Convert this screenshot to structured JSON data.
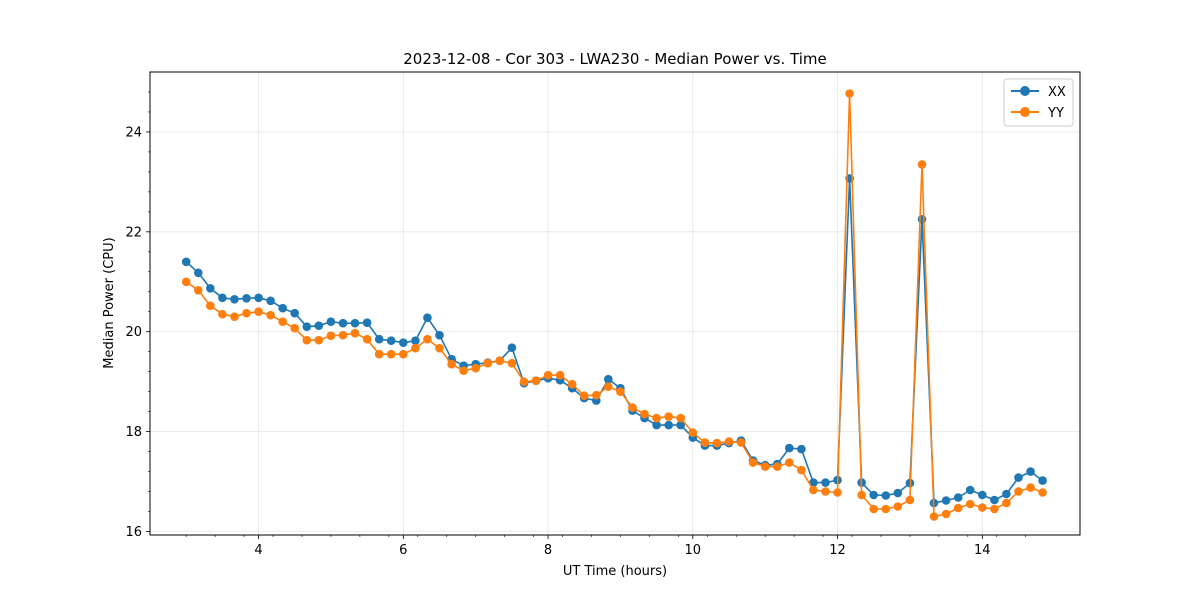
{
  "chart_data": {
    "type": "line",
    "title": "2023-12-08 - Cor 303 - LWA230 - Median Power vs. Time",
    "xlabel": "UT Time (hours)",
    "ylabel": "Median Power (CPU)",
    "xlim": [
      2.5,
      15.35
    ],
    "ylim": [
      15.93,
      25.2
    ],
    "xticks": [
      4,
      6,
      8,
      10,
      12,
      14
    ],
    "xtick_labels": [
      "4",
      "6",
      "8",
      "10",
      "12",
      "14"
    ],
    "yticks": [
      16,
      18,
      20,
      22,
      24
    ],
    "ytick_labels": [
      "16",
      "18",
      "20",
      "22",
      "24"
    ],
    "grid": true,
    "legend_position": "top-right",
    "x": [
      3.0,
      3.167,
      3.333,
      3.5,
      3.667,
      3.833,
      4.0,
      4.167,
      4.333,
      4.5,
      4.667,
      4.833,
      5.0,
      5.167,
      5.333,
      5.5,
      5.667,
      5.833,
      6.0,
      6.167,
      6.333,
      6.5,
      6.667,
      6.833,
      7.0,
      7.167,
      7.333,
      7.5,
      7.667,
      7.833,
      8.0,
      8.167,
      8.333,
      8.5,
      8.667,
      8.833,
      9.0,
      9.167,
      9.333,
      9.5,
      9.667,
      9.833,
      10.0,
      10.167,
      10.333,
      10.5,
      10.667,
      10.833,
      11.0,
      11.167,
      11.333,
      11.5,
      11.667,
      11.833,
      12.0,
      12.167,
      12.333,
      12.5,
      12.667,
      12.833,
      13.0,
      13.167,
      13.333,
      13.5,
      13.667,
      13.833,
      14.0,
      14.167,
      14.333,
      14.5,
      14.667,
      14.833
    ],
    "series": [
      {
        "name": "XX",
        "color": "#1f77b4",
        "values": [
          21.4,
          21.18,
          20.87,
          20.68,
          20.65,
          20.67,
          20.68,
          20.62,
          20.47,
          20.37,
          20.1,
          20.12,
          20.2,
          20.17,
          20.17,
          20.18,
          19.85,
          19.82,
          19.78,
          19.82,
          20.28,
          19.93,
          19.45,
          19.32,
          19.35,
          19.38,
          19.42,
          19.68,
          18.97,
          19.02,
          19.07,
          19.03,
          18.87,
          18.67,
          18.62,
          19.05,
          18.87,
          18.42,
          18.27,
          18.13,
          18.13,
          18.13,
          17.88,
          17.72,
          17.72,
          17.77,
          17.82,
          17.42,
          17.33,
          17.35,
          17.67,
          17.65,
          16.98,
          16.98,
          17.03,
          23.07,
          16.98,
          16.73,
          16.72,
          16.77,
          16.97,
          22.25,
          16.57,
          16.62,
          16.68,
          16.83,
          16.73,
          16.63,
          16.75,
          17.08,
          17.2,
          17.02
        ]
      },
      {
        "name": "YY",
        "color": "#ff7f0e",
        "values": [
          21.0,
          20.83,
          20.52,
          20.35,
          20.3,
          20.37,
          20.4,
          20.33,
          20.2,
          20.07,
          19.83,
          19.83,
          19.92,
          19.93,
          19.97,
          19.85,
          19.55,
          19.55,
          19.55,
          19.67,
          19.85,
          19.67,
          19.35,
          19.22,
          19.27,
          19.37,
          19.42,
          19.37,
          19.0,
          19.02,
          19.13,
          19.13,
          18.95,
          18.72,
          18.73,
          18.9,
          18.8,
          18.48,
          18.35,
          18.27,
          18.3,
          18.27,
          17.98,
          17.78,
          17.77,
          17.8,
          17.78,
          17.38,
          17.3,
          17.3,
          17.38,
          17.23,
          16.83,
          16.8,
          16.78,
          24.77,
          16.73,
          16.45,
          16.45,
          16.5,
          16.63,
          23.35,
          16.3,
          16.35,
          16.47,
          16.55,
          16.48,
          16.45,
          16.57,
          16.8,
          16.88,
          16.78
        ]
      }
    ]
  }
}
